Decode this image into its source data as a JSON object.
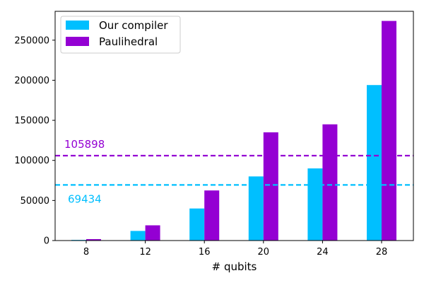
{
  "chart_data": {
    "type": "bar",
    "xlabel": "# qubits",
    "ylabel": "",
    "categories": [
      "8",
      "12",
      "16",
      "20",
      "24",
      "28"
    ],
    "ylim": [
      0,
      286000
    ],
    "yticks": [
      0,
      50000,
      100000,
      150000,
      200000,
      250000
    ],
    "ytick_labels": [
      "0",
      "50000",
      "100000",
      "150000",
      "200000",
      "250000"
    ],
    "grid": false,
    "legend_position": "top-left",
    "series": [
      {
        "name": "Our compiler",
        "color": "#00bfff",
        "values": [
          800,
          12000,
          40000,
          80000,
          90000,
          194000
        ]
      },
      {
        "name": "Paulihedral",
        "color": "#9400d3",
        "values": [
          1800,
          19000,
          62500,
          135000,
          145000,
          274000
        ]
      }
    ],
    "reference_lines": [
      {
        "value": 105898,
        "label": "105898",
        "color": "#9400d3",
        "style": "dashed"
      },
      {
        "value": 69434,
        "label": "69434",
        "color": "#00bfff",
        "style": "dashed"
      }
    ]
  }
}
